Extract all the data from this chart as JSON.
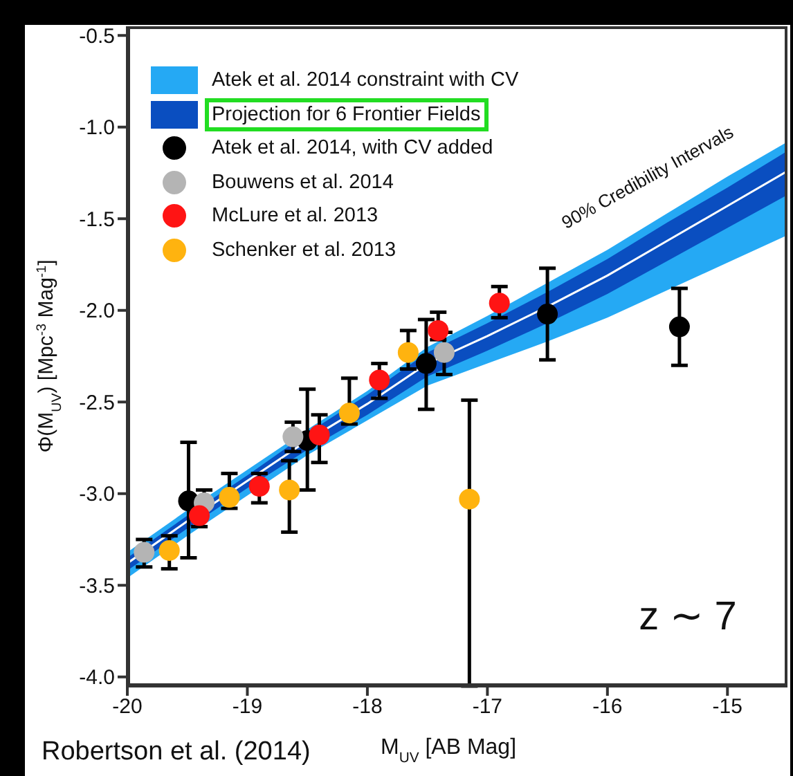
{
  "chart_data": {
    "type": "scatter",
    "xlabel": "M$_{UV}$ [AB Mag]",
    "ylabel": "Φ(M$_{UV}$) [Mpc$^{-3}$ Mag$^{-1}$]",
    "xlim": [
      -20,
      -14.5
    ],
    "xticks": [
      -20,
      -19,
      -18,
      -17,
      -16,
      -15
    ],
    "ylim": [
      -4.05,
      -0.45
    ],
    "yticks": [
      {
        "value": -4,
        "label": "-4.0"
      },
      -3.5,
      {
        "value": -3,
        "label": "-3.0"
      },
      -2.5,
      {
        "value": -2,
        "label": "-2.0"
      },
      -1.5,
      {
        "value": -1,
        "label": "-1.0"
      },
      -0.5
    ],
    "legend": "top left",
    "grid": false,
    "annotations": [
      "90% Credibility Intervals",
      "z ∼ 7",
      "Robertson et al. (2014)"
    ],
    "series": [
      {
        "type": "line",
        "name": "Atek et al. 2014 constraint with CV",
        "color": "#25a9f4",
        "x": [
          -20,
          -19.5,
          -19,
          -18.5,
          -18,
          -17.5,
          -17,
          -16.5,
          -16,
          -15.5,
          -15,
          -14.5
        ],
        "values": [
          null,
          null,
          null,
          null,
          null,
          null,
          null,
          null,
          null,
          null,
          null,
          null
        ],
        "lower": [
          -3.46,
          -3.23,
          -3.01,
          -2.79,
          -2.6,
          -2.41,
          -2.29,
          -2.17,
          -2.04,
          -1.89,
          -1.74,
          -1.59
        ],
        "upper": [
          -3.32,
          -3.09,
          -2.87,
          -2.65,
          -2.44,
          -2.2,
          -2.03,
          -1.85,
          -1.67,
          -1.47,
          -1.27,
          -1.08
        ]
      },
      {
        "type": "line",
        "name": "Projection for 6 Frontier Fields",
        "color": "#0a4ec0",
        "x": [
          -20,
          -19.5,
          -19,
          -18.5,
          -18,
          -17.5,
          -17,
          -16.5,
          -16,
          -15.5,
          -15,
          -14.5
        ],
        "values": [
          null,
          null,
          null,
          null,
          null,
          null,
          null,
          null,
          null,
          null,
          null,
          null
        ],
        "lower": [
          -3.42,
          -3.19,
          -2.97,
          -2.76,
          -2.57,
          -2.36,
          -2.22,
          -2.07,
          -1.91,
          -1.73,
          -1.55,
          -1.37
        ],
        "upper": [
          -3.35,
          -3.12,
          -2.9,
          -2.67,
          -2.46,
          -2.23,
          -2.07,
          -1.9,
          -1.72,
          -1.52,
          -1.33,
          -1.13
        ]
      },
      {
        "type": "line",
        "color": "#ffffff",
        "x": [
          -20,
          -19.5,
          -19,
          -18.5,
          -18,
          -17.5,
          -17,
          -16.5,
          -16,
          -15.5,
          -15,
          -14.5
        ],
        "values": [
          -3.38,
          -3.15,
          -2.93,
          -2.71,
          -2.51,
          -2.29,
          -2.14,
          -1.98,
          -1.81,
          -1.62,
          -1.43,
          -1.24
        ]
      },
      {
        "name": "Atek et al. 2014, with CV added",
        "color": "#000000",
        "marker": "circle",
        "x": [
          -19.49,
          -18.5,
          -17.51,
          -16.5,
          -15.4
        ],
        "values": [
          -3.04,
          -2.71,
          -2.29,
          -2.02,
          -2.09
        ],
        "errors": [
          [
            -3.35,
            -2.72
          ],
          [
            -2.98,
            -2.43
          ],
          [
            -2.54,
            -2.05
          ],
          [
            -2.27,
            -1.77
          ],
          [
            -2.3,
            -1.88
          ]
        ]
      },
      {
        "name": "Bouwens et al. 2014",
        "color": "#b4b4b4",
        "marker": "circle",
        "x": [
          -19.86,
          -19.36,
          -18.62,
          -17.36
        ],
        "values": [
          -3.32,
          -3.05,
          -2.69,
          -2.23
        ],
        "errors": [
          [
            -3.4,
            -3.25
          ],
          [
            -3.05,
            -2.98
          ],
          [
            -2.77,
            -2.61
          ],
          [
            -2.35,
            -2.12
          ]
        ]
      },
      {
        "name": "McLure et al. 2013",
        "color": "#ff1414",
        "marker": "circle",
        "x": [
          -19.4,
          -18.9,
          -18.4,
          -17.9,
          -17.41,
          -16.9
        ],
        "values": [
          -3.12,
          -2.96,
          -2.68,
          -2.38,
          -2.11,
          -1.96
        ],
        "errors": [
          [
            -3.18,
            -3.05
          ],
          [
            -3.05,
            -2.89
          ],
          [
            -2.83,
            -2.57
          ],
          [
            -2.48,
            -2.29
          ],
          [
            -2.16,
            -2.01
          ],
          [
            -2.04,
            -1.87
          ]
        ]
      },
      {
        "name": "Schenker et al. 2013",
        "color": "#ffb30f",
        "marker": "circle",
        "x": [
          -19.65,
          -19.15,
          -18.65,
          -18.15,
          -17.66,
          -17.15
        ],
        "values": [
          -3.31,
          -3.02,
          -2.98,
          -2.56,
          -2.23,
          -3.03
        ],
        "errors": [
          [
            -3.41,
            -3.23
          ],
          [
            -3.08,
            -2.89
          ],
          [
            -3.21,
            -2.82
          ],
          [
            -2.62,
            -2.37
          ],
          [
            -2.32,
            -2.11
          ],
          [
            -4.05,
            -2.49
          ]
        ]
      }
    ]
  }
}
